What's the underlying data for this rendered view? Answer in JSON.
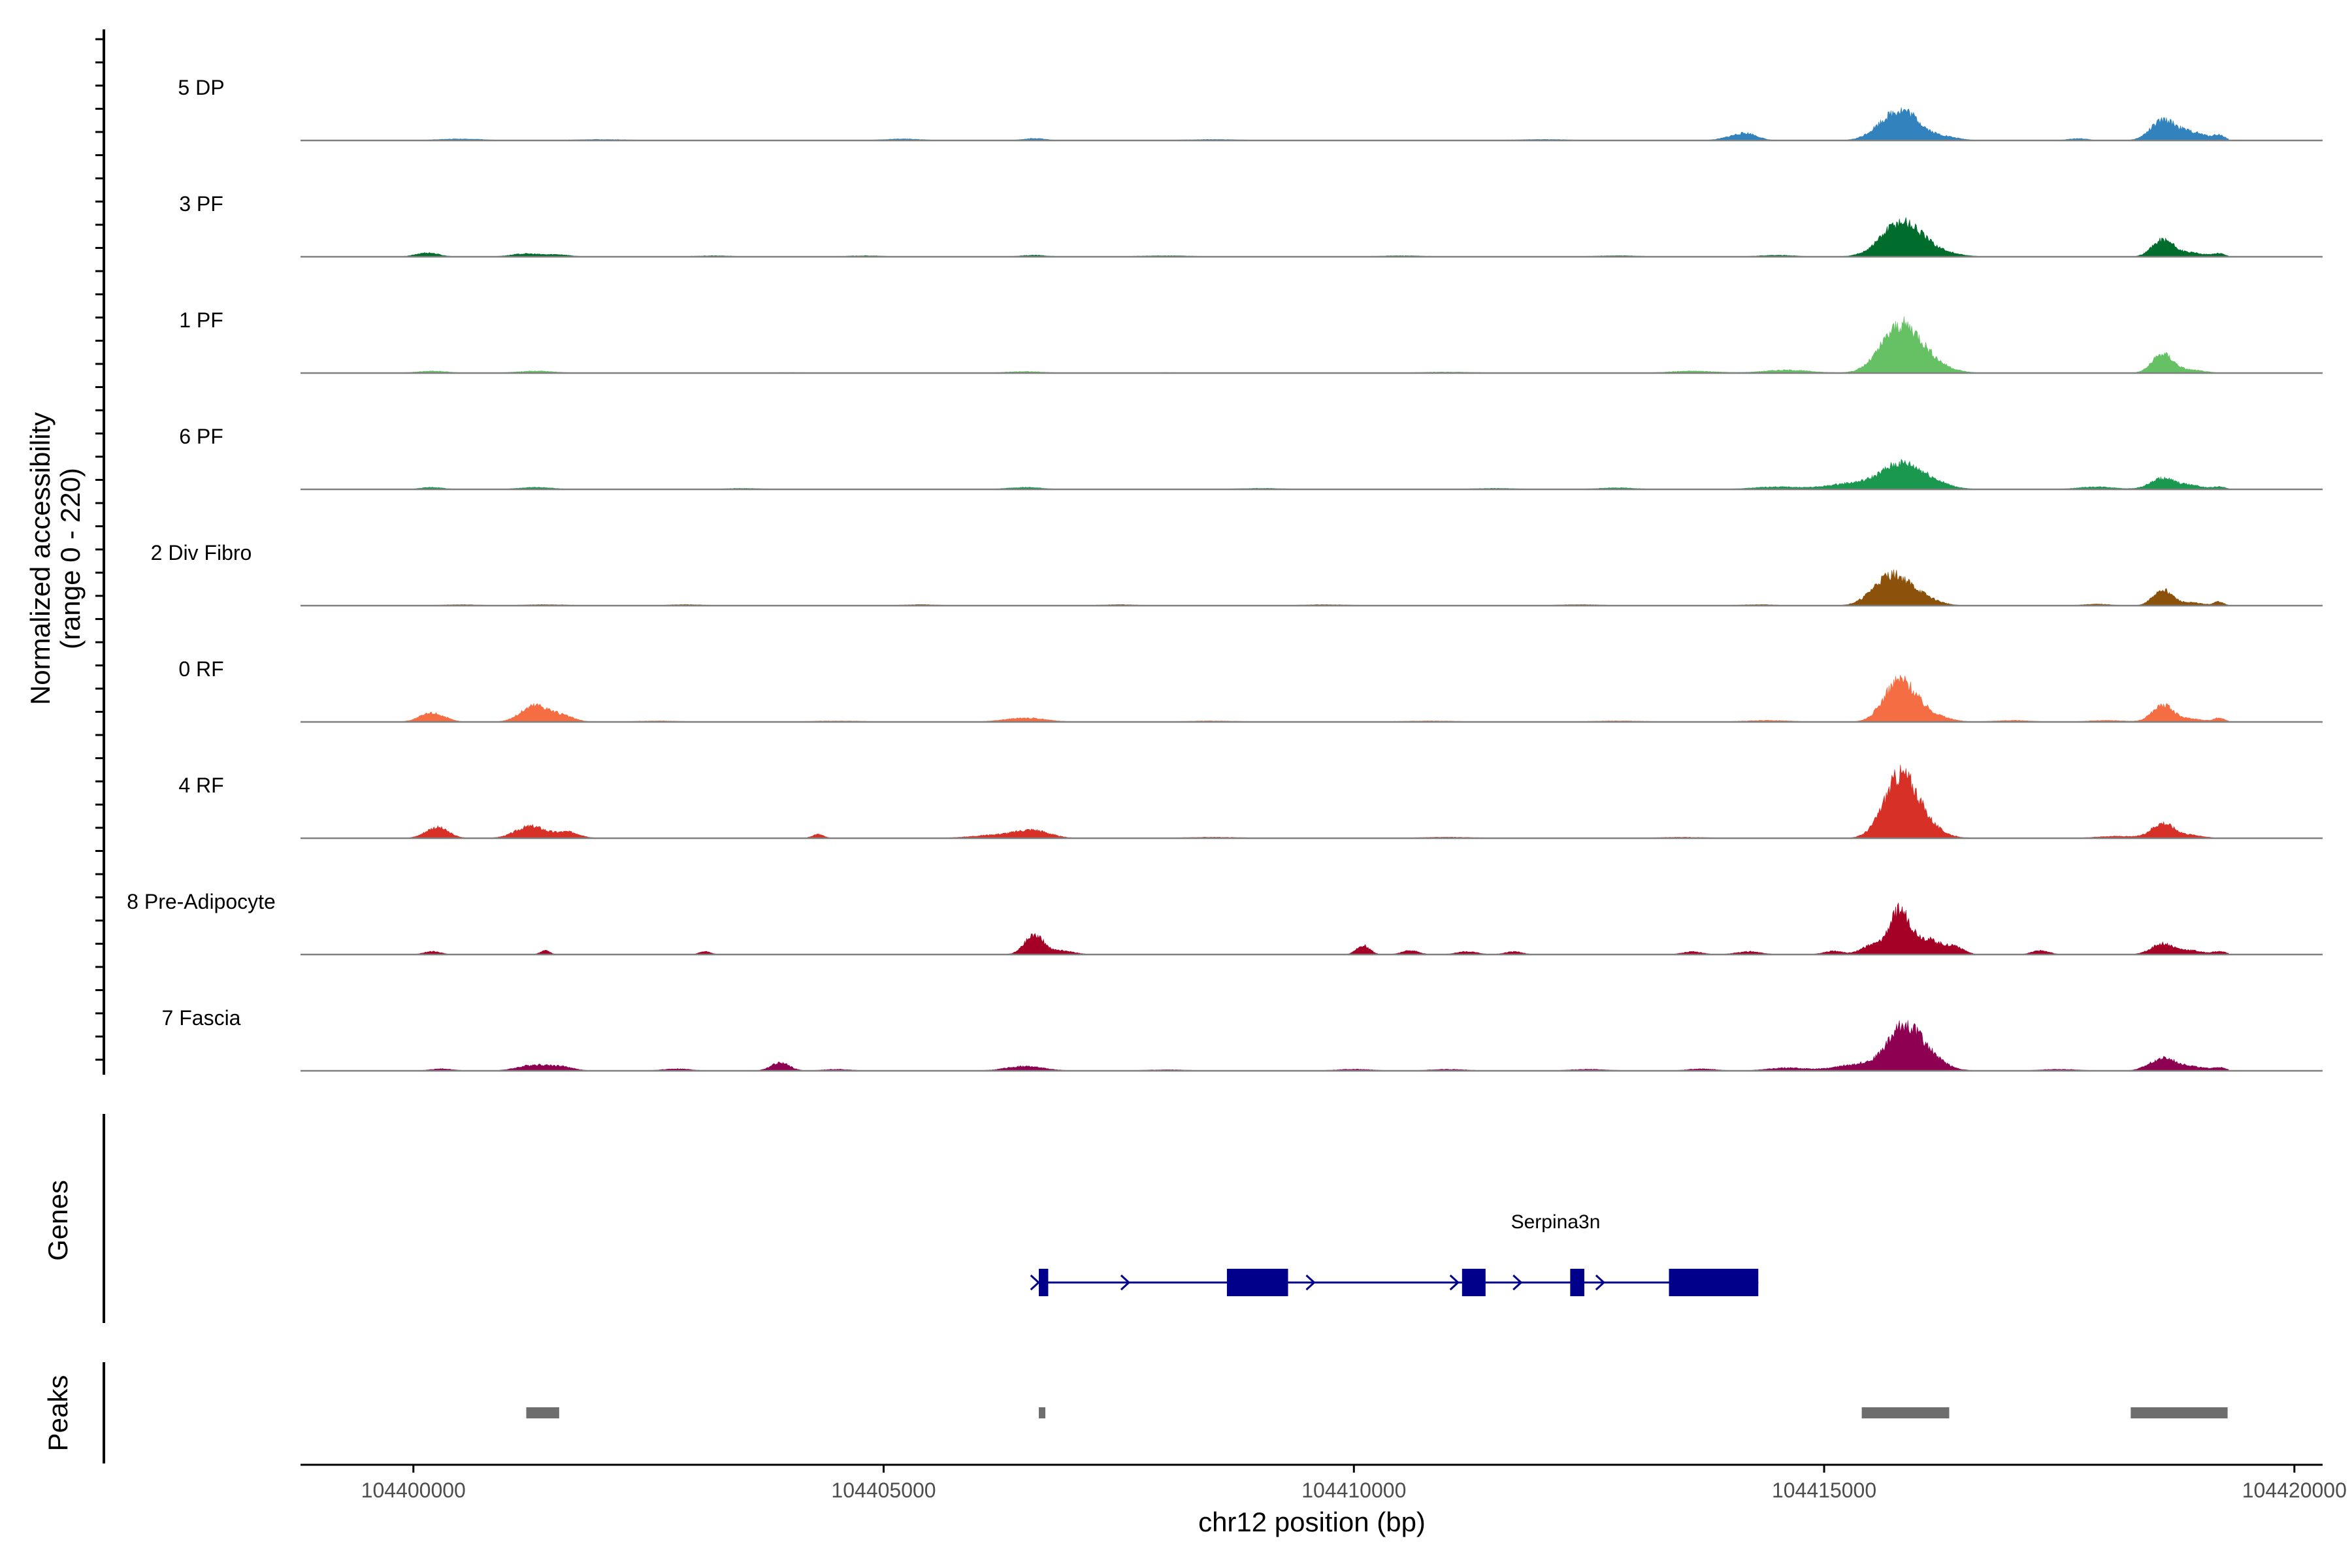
{
  "chart_data": {
    "type": "area",
    "title": "",
    "chromosome": "chr12",
    "xlabel": "chr12 position (bp)",
    "ylabel": "Normalized accessibility",
    "ylabel_range": "(range 0 - 220)",
    "ylim": [
      0,
      220
    ],
    "xlim": [
      104398800,
      104420300
    ],
    "x_ticks": [
      "104400000",
      "104405000",
      "104410000",
      "104415000",
      "104420000"
    ],
    "x_tick_values": [
      104400000,
      104405000,
      104410000,
      104415000,
      104420000
    ],
    "track_start": 104398800,
    "track_end": 104419300,
    "tracks": [
      {
        "label": "5 DP",
        "color": "#3182BD",
        "peaks": [
          [
            104400500,
            3,
            250
          ],
          [
            104402000,
            2,
            300
          ],
          [
            104405200,
            3,
            200
          ],
          [
            104406600,
            4,
            120
          ],
          [
            104408500,
            2,
            300
          ],
          [
            104412000,
            2,
            300
          ],
          [
            104414100,
            10,
            150
          ],
          [
            104414200,
            6,
            100
          ],
          [
            104415700,
            40,
            170
          ],
          [
            104415900,
            34,
            140
          ],
          [
            104416200,
            10,
            180
          ],
          [
            104417700,
            4,
            100
          ],
          [
            104418600,
            38,
            130
          ],
          [
            104418900,
            16,
            160
          ],
          [
            104419200,
            9,
            60
          ]
        ]
      },
      {
        "label": "3 PF",
        "color": "#006D2C",
        "peaks": [
          [
            104400150,
            8,
            120
          ],
          [
            104401200,
            6,
            160
          ],
          [
            104401550,
            4,
            120
          ],
          [
            104403200,
            2,
            200
          ],
          [
            104404800,
            2,
            200
          ],
          [
            104406600,
            3,
            140
          ],
          [
            104408000,
            2,
            300
          ],
          [
            104410500,
            2,
            250
          ],
          [
            104412800,
            2,
            250
          ],
          [
            104414500,
            3,
            200
          ],
          [
            104415800,
            56,
            200
          ],
          [
            104416000,
            20,
            260
          ],
          [
            104418600,
            34,
            110
          ],
          [
            104418900,
            8,
            150
          ],
          [
            104419200,
            6,
            60
          ]
        ]
      },
      {
        "label": "1 PF",
        "color": "#66C164",
        "peaks": [
          [
            104400200,
            4,
            160
          ],
          [
            104401300,
            4,
            200
          ],
          [
            104404000,
            1,
            300
          ],
          [
            104406500,
            3,
            200
          ],
          [
            104408000,
            1,
            300
          ],
          [
            104411000,
            2,
            300
          ],
          [
            104413600,
            4,
            250
          ],
          [
            104414600,
            6,
            250
          ],
          [
            104415800,
            78,
            200
          ],
          [
            104416000,
            28,
            240
          ],
          [
            104418600,
            38,
            110
          ],
          [
            104418900,
            6,
            140
          ]
        ]
      },
      {
        "label": "6 PF",
        "color": "#1A9850",
        "peaks": [
          [
            104400200,
            4,
            120
          ],
          [
            104401300,
            4,
            180
          ],
          [
            104403500,
            2,
            200
          ],
          [
            104406500,
            4,
            180
          ],
          [
            104409000,
            2,
            250
          ],
          [
            104411500,
            2,
            250
          ],
          [
            104412800,
            3,
            200
          ],
          [
            104414500,
            5,
            250
          ],
          [
            104415300,
            12,
            250
          ],
          [
            104415800,
            46,
            200
          ],
          [
            104416100,
            16,
            200
          ],
          [
            104417900,
            5,
            200
          ],
          [
            104418600,
            22,
            130
          ],
          [
            104418900,
            8,
            120
          ],
          [
            104419200,
            5,
            70
          ]
        ]
      },
      {
        "label": "2 Div Fibro",
        "color": "#8C510A",
        "peaks": [
          [
            104400500,
            2,
            200
          ],
          [
            104401400,
            2,
            250
          ],
          [
            104402900,
            2,
            200
          ],
          [
            104405400,
            2,
            200
          ],
          [
            104407500,
            2,
            200
          ],
          [
            104409700,
            2,
            250
          ],
          [
            104412400,
            2,
            250
          ],
          [
            104414300,
            2,
            200
          ],
          [
            104415700,
            58,
            180
          ],
          [
            104416000,
            18,
            180
          ],
          [
            104417900,
            3,
            150
          ],
          [
            104418600,
            32,
            100
          ],
          [
            104418900,
            6,
            130
          ],
          [
            104419200,
            8,
            50
          ]
        ]
      },
      {
        "label": "0 RF",
        "color": "#F46D43",
        "peaks": [
          [
            104400200,
            18,
            130
          ],
          [
            104401300,
            34,
            150
          ],
          [
            104401600,
            10,
            120
          ],
          [
            104402600,
            2,
            250
          ],
          [
            104404500,
            2,
            300
          ],
          [
            104406500,
            8,
            220
          ],
          [
            104408500,
            2,
            300
          ],
          [
            104410800,
            2,
            300
          ],
          [
            104412800,
            2,
            300
          ],
          [
            104414400,
            3,
            250
          ],
          [
            104415800,
            82,
            160
          ],
          [
            104416100,
            16,
            180
          ],
          [
            104417000,
            3,
            200
          ],
          [
            104418000,
            3,
            200
          ],
          [
            104418600,
            34,
            110
          ],
          [
            104418900,
            6,
            130
          ],
          [
            104419200,
            8,
            60
          ]
        ]
      },
      {
        "label": "4 RF",
        "color": "#D73027",
        "peaks": [
          [
            104400250,
            22,
            120
          ],
          [
            104401250,
            24,
            160
          ],
          [
            104401650,
            12,
            120
          ],
          [
            104404300,
            8,
            60
          ],
          [
            104406300,
            8,
            300
          ],
          [
            104406600,
            12,
            160
          ],
          [
            104408500,
            2,
            300
          ],
          [
            104411000,
            2,
            300
          ],
          [
            104413500,
            2,
            250
          ],
          [
            104415800,
            110,
            170
          ],
          [
            104416000,
            30,
            200
          ],
          [
            104418100,
            4,
            200
          ],
          [
            104418600,
            30,
            120
          ],
          [
            104418900,
            6,
            130
          ]
        ]
      },
      {
        "label": "8 Pre-Adipocyte",
        "color": "#A50026",
        "peaks": [
          [
            104400200,
            6,
            90
          ],
          [
            104401400,
            8,
            50
          ],
          [
            104403100,
            6,
            60
          ],
          [
            104406600,
            40,
            100
          ],
          [
            104406900,
            8,
            120
          ],
          [
            104410100,
            18,
            70
          ],
          [
            104410600,
            8,
            90
          ],
          [
            104411200,
            6,
            110
          ],
          [
            104411700,
            6,
            90
          ],
          [
            104413600,
            6,
            100
          ],
          [
            104414200,
            6,
            130
          ],
          [
            104415100,
            7,
            100
          ],
          [
            104415500,
            18,
            110
          ],
          [
            104415800,
            85,
            110
          ],
          [
            104416100,
            30,
            150
          ],
          [
            104416400,
            14,
            90
          ],
          [
            104417300,
            8,
            90
          ],
          [
            104418600,
            22,
            120
          ],
          [
            104418900,
            8,
            110
          ],
          [
            104419200,
            6,
            80
          ]
        ]
      },
      {
        "label": "7 Fascia",
        "color": "#8E0152",
        "peaks": [
          [
            104400300,
            4,
            120
          ],
          [
            104401300,
            12,
            180
          ],
          [
            104401600,
            6,
            120
          ],
          [
            104402800,
            4,
            150
          ],
          [
            104403900,
            16,
            100
          ],
          [
            104404500,
            3,
            150
          ],
          [
            104406500,
            9,
            200
          ],
          [
            104408000,
            2,
            250
          ],
          [
            104410000,
            3,
            200
          ],
          [
            104411000,
            3,
            200
          ],
          [
            104412500,
            3,
            200
          ],
          [
            104413700,
            4,
            150
          ],
          [
            104414600,
            6,
            200
          ],
          [
            104415400,
            14,
            250
          ],
          [
            104415850,
            82,
            170
          ],
          [
            104416100,
            24,
            180
          ],
          [
            104417500,
            3,
            200
          ],
          [
            104418600,
            24,
            140
          ],
          [
            104418900,
            8,
            150
          ],
          [
            104419200,
            6,
            70
          ]
        ]
      }
    ],
    "genes_label": "Genes",
    "gene": {
      "name": "Serpina3n",
      "strand": "+",
      "start": 104406650,
      "end": 104414300,
      "exons": [
        [
          104406650,
          104406750
        ],
        [
          104408650,
          104409300
        ],
        [
          104411150,
          104411400
        ],
        [
          104412300,
          104412450
        ],
        [
          104413350,
          104414300
        ]
      ]
    },
    "peaks_label": "Peaks",
    "peaks": [
      [
        104401200,
        104401550
      ],
      [
        104406650,
        104406700
      ],
      [
        104415400,
        104416330
      ],
      [
        104418260,
        104419290
      ]
    ]
  }
}
